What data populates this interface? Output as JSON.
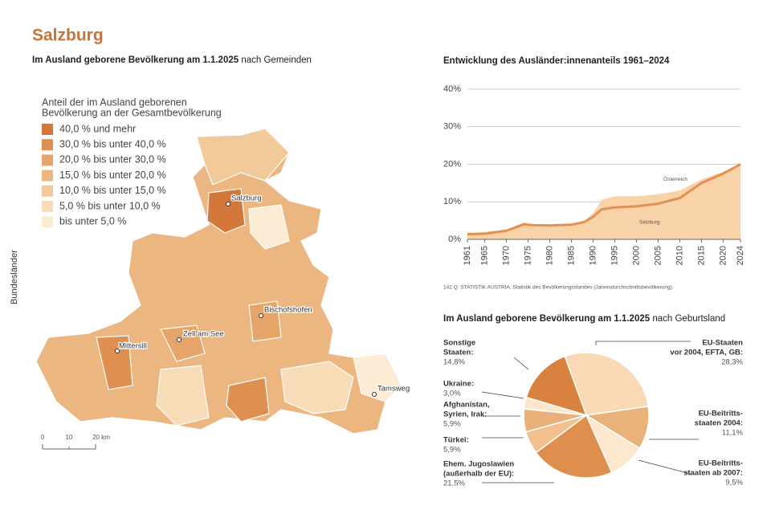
{
  "page": {
    "title": "Salzburg",
    "side_label": "Bundesländer",
    "source_note": "142 Q: STATISTIK AUSTRIA, Statistik des Bevölkerungsstandes (Jahresdurchschnittsbevölkerung)."
  },
  "map": {
    "title_bold": "Im Ausland geborene Bevölkerung am 1.1.2025",
    "title_rest": "nach Gemeinden",
    "legend": {
      "title": [
        "Anteil der im Ausland geborenen",
        "Bevölkerung an der Gesamtbevölkerung"
      ],
      "items": [
        {
          "label": "40,0 % und mehr",
          "color": "#d4773a"
        },
        {
          "label": "30,0 % bis unter 40,0 %",
          "color": "#df8f4f"
        },
        {
          "label": "20,0 % bis unter 30,0 %",
          "color": "#e6a468"
        },
        {
          "label": "15,0 % bis unter 20,0 %",
          "color": "#ebb680"
        },
        {
          "label": "10,0 % bis unter 15,0 %",
          "color": "#f2c999"
        },
        {
          "label": "5,0 % bis unter 10,0 %",
          "color": "#f8dcb8"
        },
        {
          "label": "bis unter 5,0 %",
          "color": "#fdecd4"
        }
      ]
    },
    "places": [
      "Salzburg",
      "Bischofshofen",
      "Zell am See",
      "Mittersill",
      "Tamsweg"
    ],
    "scale": [
      "0",
      "10",
      "20 km"
    ]
  },
  "chart_data": [
    {
      "type": "line",
      "title": "Entwicklung des Ausländer:innenanteils 1961–2024",
      "x": [
        1961,
        1965,
        1970,
        1974,
        1976,
        1980,
        1985,
        1988,
        1990,
        1992,
        1995,
        2000,
        2005,
        2010,
        2015,
        2020,
        2024
      ],
      "series": [
        {
          "name": "Salzburg",
          "color": "#f9d3a8",
          "fill": true,
          "values": [
            1.5,
            2,
            2.5,
            4.5,
            4,
            4,
            4.2,
            5,
            7,
            10.5,
            11.5,
            11.5,
            12,
            13,
            16,
            18,
            20
          ]
        },
        {
          "name": "Österreich",
          "color": "#e39150",
          "fill": false,
          "values": [
            1.4,
            1.5,
            2.3,
            4,
            3.8,
            3.7,
            3.9,
            4.6,
            6,
            8,
            8.5,
            8.8,
            9.5,
            11,
            15,
            17.5,
            20
          ]
        }
      ],
      "xlim": [
        1961,
        2024
      ],
      "xticks": [
        1961,
        1965,
        1970,
        1975,
        1980,
        1985,
        1990,
        1995,
        2000,
        2005,
        2010,
        2015,
        2020,
        2024
      ],
      "ylim": [
        0,
        40
      ],
      "yticks": [
        {
          "value": 0,
          "label": "0%"
        },
        {
          "value": 10,
          "label": "10%"
        },
        {
          "value": 20,
          "label": "20%"
        },
        {
          "value": 30,
          "label": "30%"
        },
        {
          "value": 40,
          "label": "40%"
        }
      ],
      "grid": true
    },
    {
      "type": "pie",
      "title_bold": "Im Ausland geborene Bevölkerung am 1.1.2025",
      "title_rest": "nach Geburtsland",
      "categories": [
        [
          "EU-Staaten",
          "vor 2004, EFTA, GB:"
        ],
        [
          "EU-Beitritts-",
          "staaten 2004:"
        ],
        [
          "EU-Beitritts-",
          "staaten ab 2007:"
        ],
        [
          "Ehem. Jugoslawien",
          "(außerhalb der EU):"
        ],
        [
          "Türkei:"
        ],
        [
          "Afghanistan,",
          "Syrien, Irak:"
        ],
        [
          "Ukraine:"
        ],
        [
          "Sonstige",
          "Staaten:"
        ]
      ],
      "values": [
        28.3,
        11.1,
        9.5,
        21.5,
        5.9,
        5.9,
        3.0,
        14.8
      ],
      "value_labels": [
        "28,3%",
        "11,1%",
        "9,5%",
        "21,5%",
        "5,9%",
        "5,9%",
        "3,0%",
        "14,8%"
      ],
      "colors": [
        "#fad9b5",
        "#e8b27a",
        "#fde8cf",
        "#de8f4e",
        "#f1c08c",
        "#e9b07a",
        "#fce6cc",
        "#d9823f"
      ]
    }
  ]
}
